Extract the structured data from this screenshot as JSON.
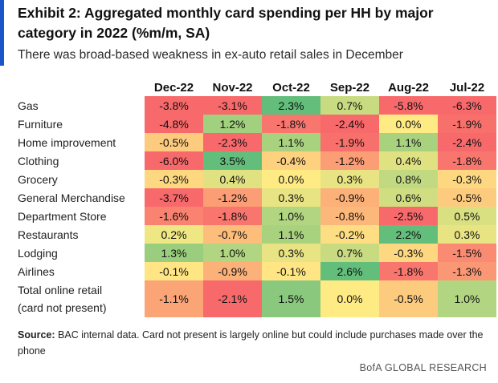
{
  "header": {
    "title": "Exhibit 2: Aggregated monthly card spending per HH by major category in 2022  (%m/m, SA)",
    "subtitle": "There was broad-based weakness in ex-auto retail sales in December"
  },
  "chart_data": {
    "type": "heatmap",
    "columns": [
      "Dec-22",
      "Nov-22",
      "Oct-22",
      "Sep-22",
      "Aug-22",
      "Jul-22"
    ],
    "rows": [
      {
        "label": "Gas",
        "values": [
          -3.8,
          -3.1,
          2.3,
          0.7,
          -5.8,
          -6.3
        ],
        "display": [
          "-3.8%",
          "-3.1%",
          "2.3%",
          "0.7%",
          "-5.8%",
          "-6.3%"
        ]
      },
      {
        "label": "Furniture",
        "values": [
          -4.8,
          1.2,
          -1.8,
          -2.4,
          0.0,
          -1.9
        ],
        "display": [
          "-4.8%",
          "1.2%",
          "-1.8%",
          "-2.4%",
          "0.0%",
          "-1.9%"
        ]
      },
      {
        "label": "Home improvement",
        "values": [
          -0.5,
          -2.3,
          1.1,
          -1.9,
          1.1,
          -2.4
        ],
        "display": [
          "-0.5%",
          "-2.3%",
          "1.1%",
          "-1.9%",
          "1.1%",
          "-2.4%"
        ]
      },
      {
        "label": "Clothing",
        "values": [
          -6.0,
          3.5,
          -0.4,
          -1.2,
          0.4,
          -1.8
        ],
        "display": [
          "-6.0%",
          "3.5%",
          "-0.4%",
          "-1.2%",
          "0.4%",
          "-1.8%"
        ]
      },
      {
        "label": "Grocery",
        "values": [
          -0.3,
          0.4,
          0.0,
          0.3,
          0.8,
          -0.3
        ],
        "display": [
          "-0.3%",
          "0.4%",
          "0.0%",
          "0.3%",
          "0.8%",
          "-0.3%"
        ]
      },
      {
        "label": "General Merchandise",
        "values": [
          -3.7,
          -1.2,
          0.3,
          -0.9,
          0.6,
          -0.5
        ],
        "display": [
          "-3.7%",
          "-1.2%",
          "0.3%",
          "-0.9%",
          "0.6%",
          "-0.5%"
        ]
      },
      {
        "label": "Department Store",
        "values": [
          -1.6,
          -1.8,
          1.0,
          -0.8,
          -2.5,
          0.5
        ],
        "display": [
          "-1.6%",
          "-1.8%",
          "1.0%",
          "-0.8%",
          "-2.5%",
          "0.5%"
        ]
      },
      {
        "label": "Restaurants",
        "values": [
          0.2,
          -0.7,
          1.1,
          -0.2,
          2.2,
          0.3
        ],
        "display": [
          "0.2%",
          "-0.7%",
          "1.1%",
          "-0.2%",
          "2.2%",
          "0.3%"
        ]
      },
      {
        "label": "Lodging",
        "values": [
          1.3,
          1.0,
          0.3,
          0.7,
          -0.3,
          -1.5
        ],
        "display": [
          "1.3%",
          "1.0%",
          "0.3%",
          "0.7%",
          "-0.3%",
          "-1.5%"
        ]
      },
      {
        "label": "Airlines",
        "values": [
          -0.1,
          -0.9,
          -0.1,
          2.6,
          -1.8,
          -1.3
        ],
        "display": [
          "-0.1%",
          "-0.9%",
          "-0.1%",
          "2.6%",
          "-1.8%",
          "-1.3%"
        ]
      },
      {
        "label": "Total online retail\n(card not present)",
        "values": [
          -1.1,
          -2.1,
          1.5,
          0.0,
          -0.5,
          1.0
        ],
        "display": [
          "-1.1%",
          "-2.1%",
          "1.5%",
          "0.0%",
          "-0.5%",
          "1.0%"
        ]
      }
    ],
    "color_scale": {
      "low": "#f8696b",
      "mid": "#ffeb84",
      "high": "#63be7b"
    }
  },
  "footer": {
    "source_label": "Source:",
    "source_text": " BAC internal data. Card not present is largely online but could include purchases made over the phone",
    "credit": "BofA GLOBAL RESEARCH"
  }
}
